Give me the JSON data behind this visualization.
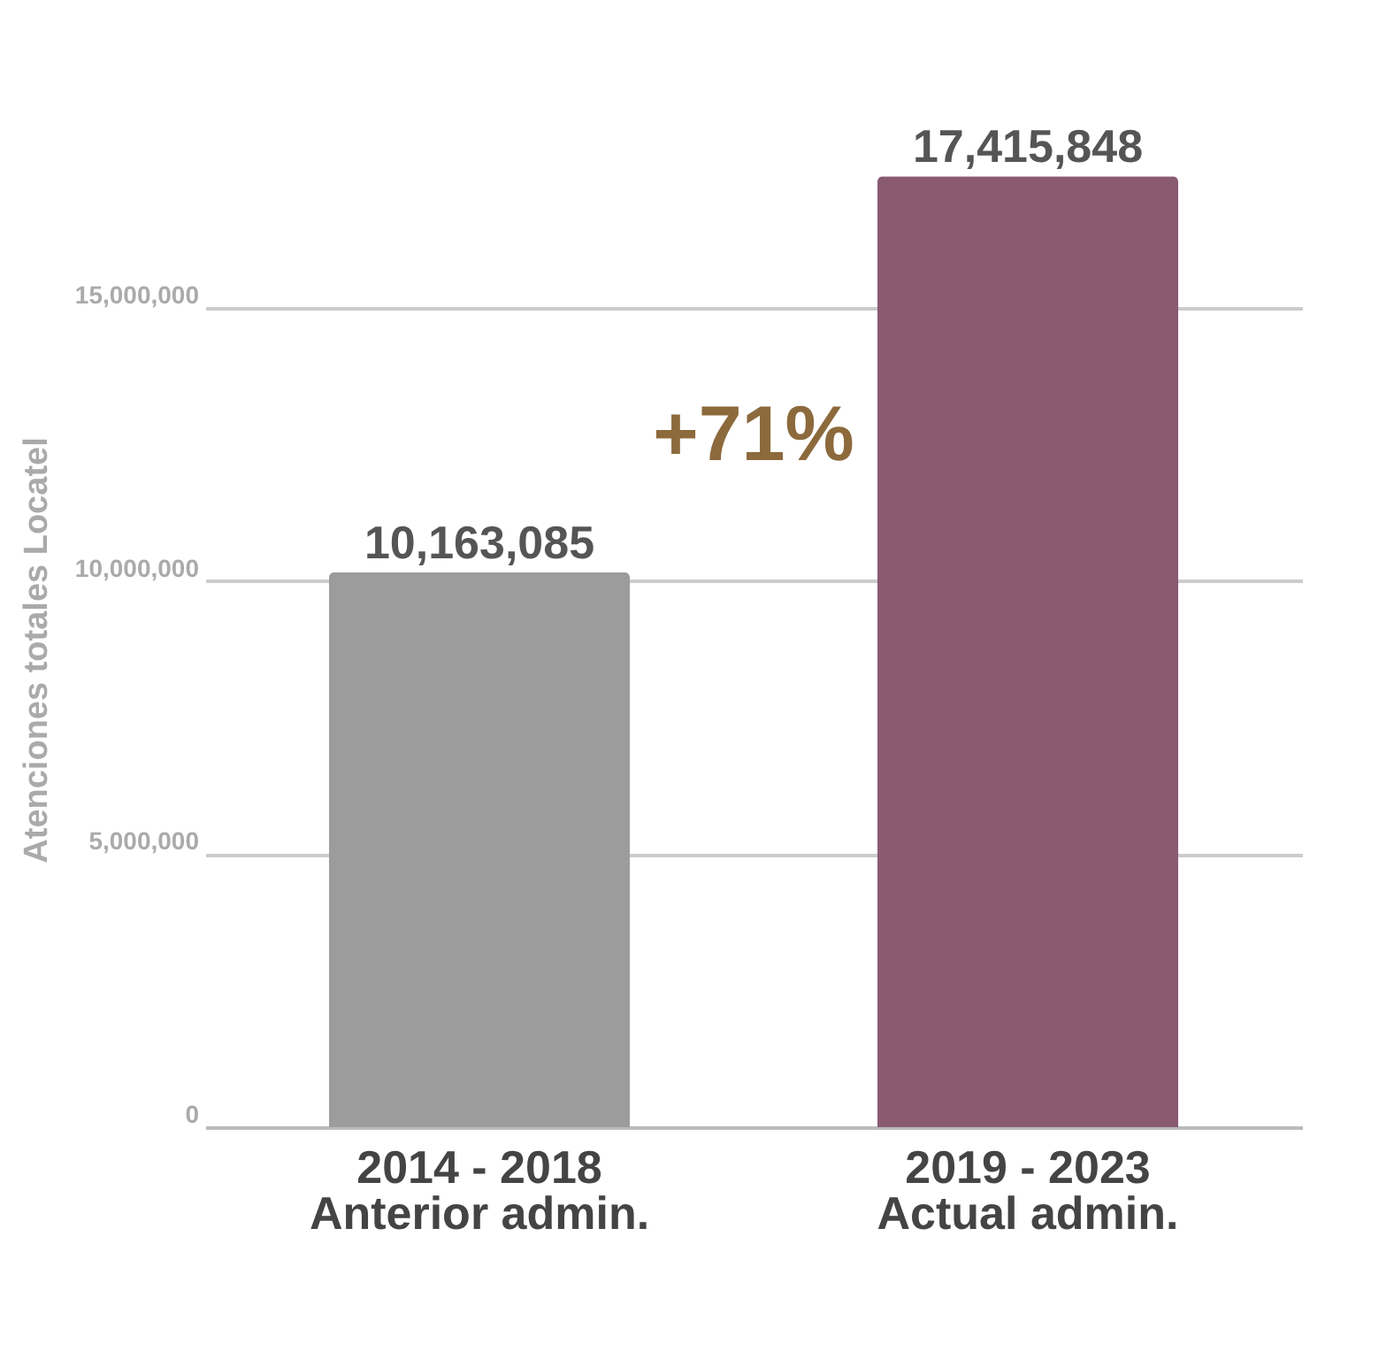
{
  "chart_data": {
    "type": "bar",
    "ylabel": "Atenciones totales Locatel",
    "categories": [
      "2014 - 2018\nAnterior admin.",
      "2019 - 2023\nActual admin."
    ],
    "values": [
      10163085,
      17415848
    ],
    "value_labels": [
      "10,163,085",
      "17,415,848"
    ],
    "colors": [
      "#9c9c9c",
      "#8a5a72"
    ],
    "ylim": [
      0,
      17500000
    ],
    "yticks": [
      0,
      {
        "value": 5000000,
        "label": "5,000,000"
      },
      {
        "value": 10000000,
        "label": "10,000,000"
      },
      {
        "value": 15000000,
        "label": "15,000,000"
      }
    ],
    "grid": "y",
    "annotations": [
      "+71%"
    ]
  }
}
